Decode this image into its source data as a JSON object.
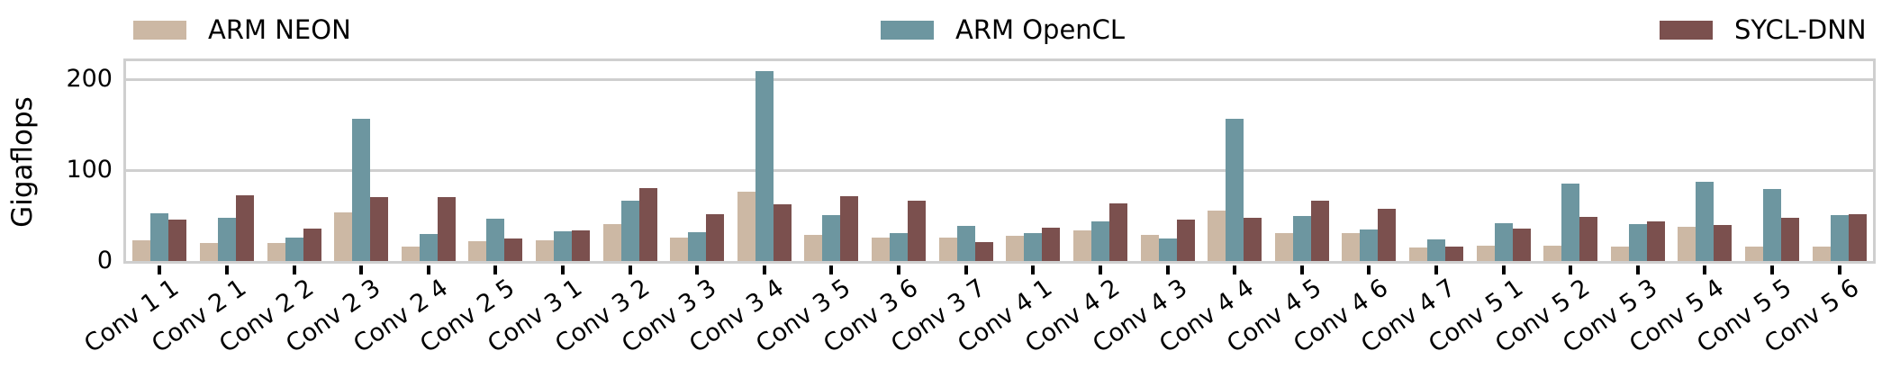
{
  "chart_data": {
    "type": "bar",
    "title": "",
    "xlabel": "",
    "ylabel": "Gigaflops",
    "yticks": [
      0,
      100,
      200
    ],
    "ylim": [
      0,
      220
    ],
    "grid": "horizontal",
    "legend_position": "top",
    "categories": [
      "Conv 1 1",
      "Conv 2 1",
      "Conv 2 2",
      "Conv 2 3",
      "Conv 2 4",
      "Conv 2 5",
      "Conv 3 1",
      "Conv 3 2",
      "Conv 3 3",
      "Conv 3 4",
      "Conv 3 5",
      "Conv 3 6",
      "Conv 3 7",
      "Conv 4 1",
      "Conv 4 2",
      "Conv 4 3",
      "Conv 4 4",
      "Conv 4 5",
      "Conv 4 6",
      "Conv 4 7",
      "Conv 5 1",
      "Conv 5 2",
      "Conv 5 3",
      "Conv 5 4",
      "Conv 5 5",
      "Conv 5 6"
    ],
    "series": [
      {
        "name": "ARM NEON",
        "color": "#ccb8a4",
        "values": [
          23,
          20,
          20,
          54,
          16,
          22,
          23,
          41,
          26,
          76,
          29,
          26,
          26,
          28,
          34,
          29,
          56,
          31,
          31,
          15,
          17,
          17,
          16,
          38,
          16,
          16
        ]
      },
      {
        "name": "ARM OpenCL",
        "color": "#6d96a0",
        "values": [
          53,
          48,
          26,
          157,
          30,
          47,
          33,
          66,
          32,
          209,
          51,
          31,
          39,
          31,
          44,
          25,
          157,
          50,
          35,
          24,
          42,
          85,
          41,
          87,
          79,
          51
        ]
      },
      {
        "name": "SYCL-DNN",
        "color": "#7b504e",
        "values": [
          46,
          72,
          36,
          70,
          70,
          25,
          34,
          80,
          52,
          62,
          71,
          66,
          21,
          37,
          63,
          46,
          48,
          66,
          57,
          16,
          36,
          49,
          44,
          40,
          48,
          52
        ]
      }
    ]
  },
  "colors": {
    "background": "#ffffff",
    "spine": "#cfcfcf",
    "gridline": "#cfcfcf",
    "tick_mark": "#000000",
    "text": "#000000"
  }
}
